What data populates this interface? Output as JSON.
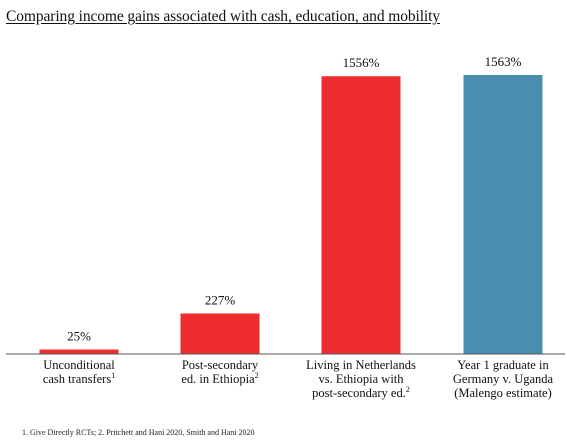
{
  "chart_data": {
    "type": "bar",
    "title": "Comparing income gains associated with cash, education, and mobility",
    "categories": [
      {
        "lines": [
          "Unconditional",
          "cash transfers"
        ],
        "footnote_ref": "1"
      },
      {
        "lines": [
          "Post-secondary",
          "ed. in Ethiopia"
        ],
        "footnote_ref": "2"
      },
      {
        "lines": [
          "Living in Netherlands",
          "vs. Ethiopia with",
          "post-secondary ed."
        ],
        "footnote_ref": "2"
      },
      {
        "lines": [
          "Year 1 graduate in",
          "Germany v. Uganda",
          "(Malengo estimate)"
        ],
        "footnote_ref": ""
      }
    ],
    "values": [
      25,
      227,
      1556,
      1563
    ],
    "value_labels": [
      "25%",
      "227%",
      "1556%",
      "1563%"
    ],
    "colors": [
      "#ee2b2e",
      "#ee2b2e",
      "#ee2b2e",
      "#4b8db0"
    ],
    "ylim": [
      0,
      1563
    ],
    "xlabel": "",
    "ylabel": "",
    "grid": false,
    "legend": "none"
  },
  "footnote": "1. Give Directly RCTs; 2. Pritchett and Hani 2020, Smith and Hani 2020"
}
